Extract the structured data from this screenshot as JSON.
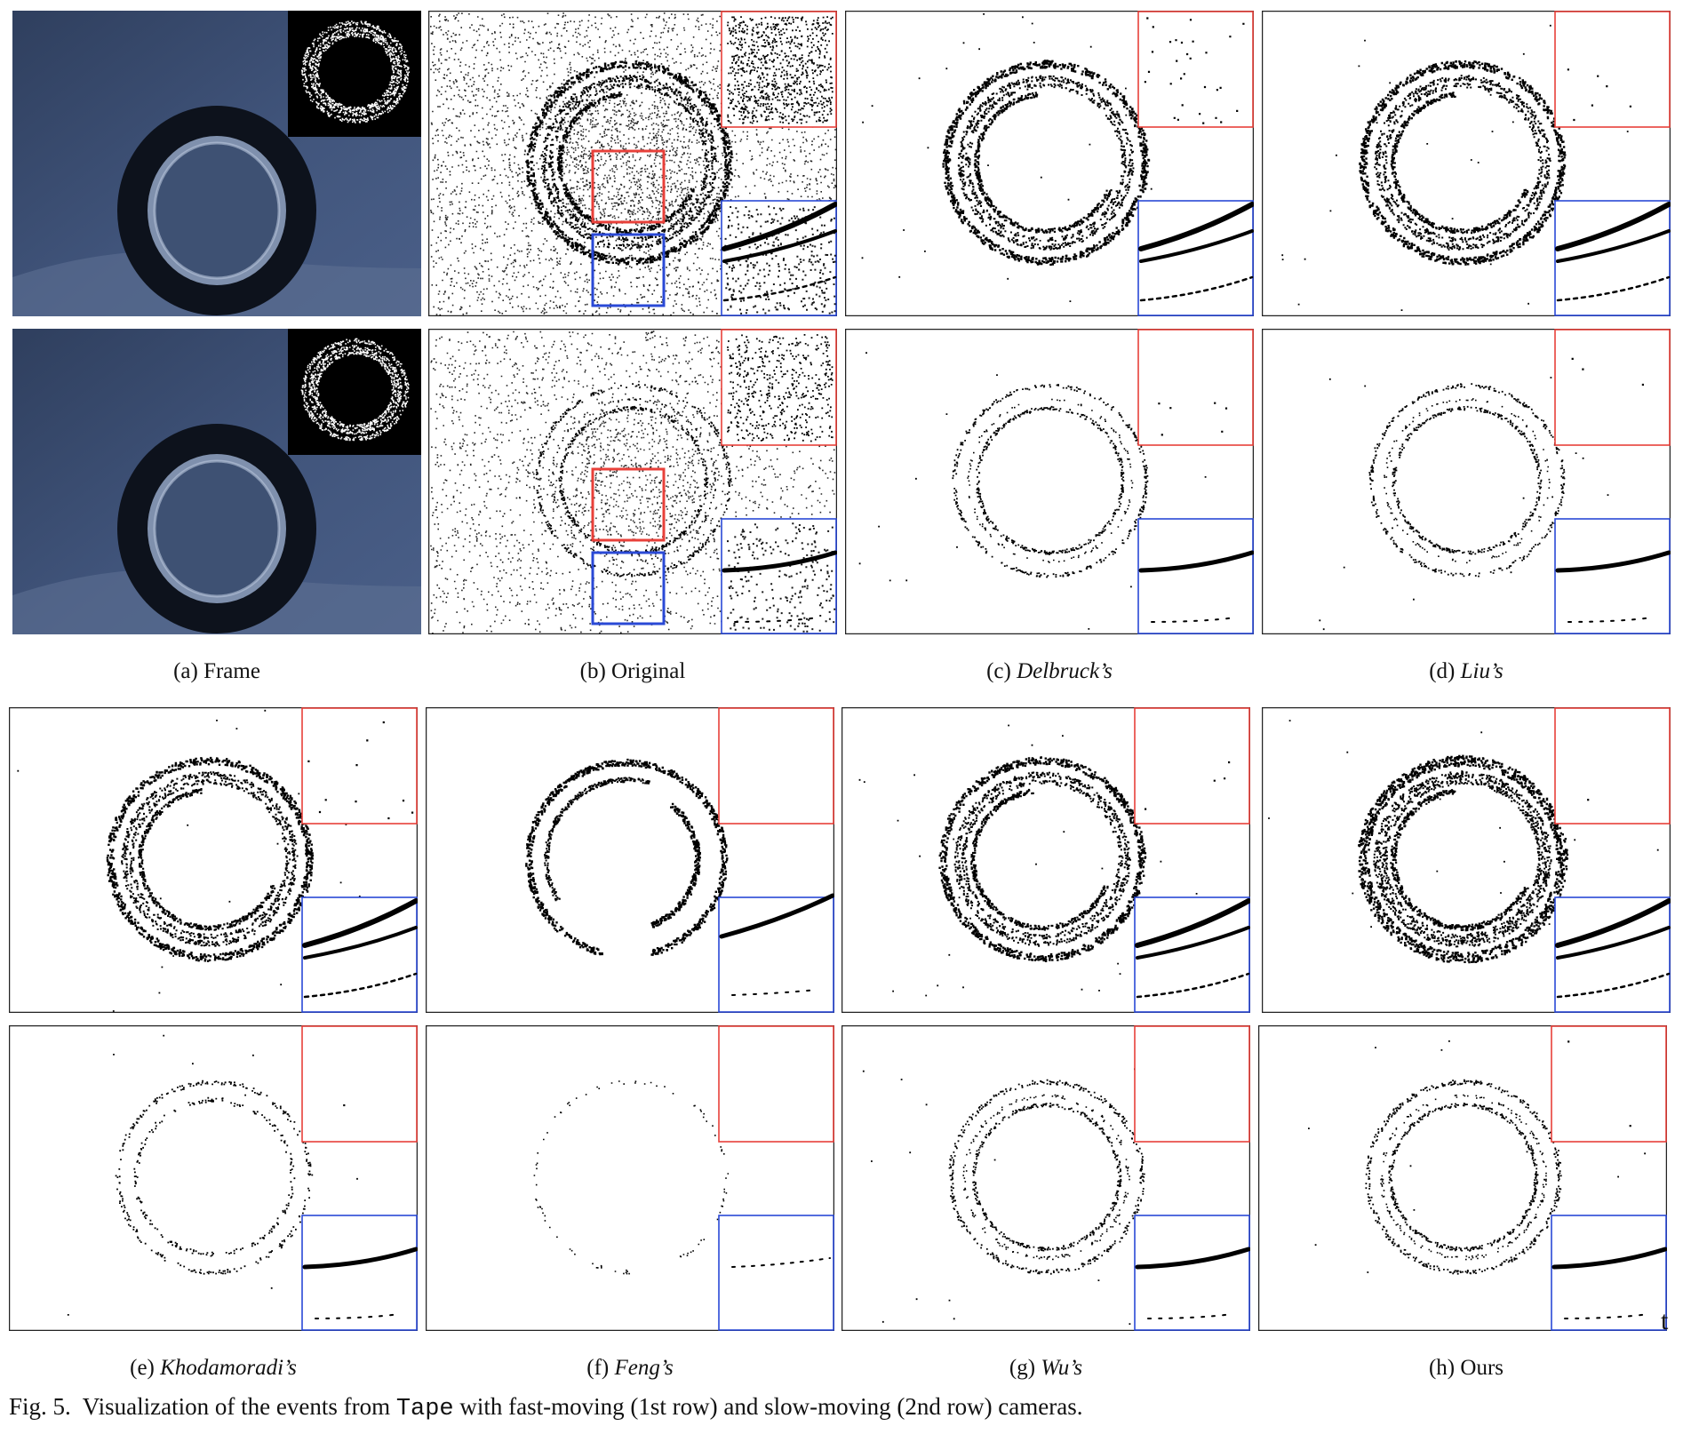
{
  "labels": {
    "a": {
      "letter": "(a)",
      "name": "Frame"
    },
    "b": {
      "letter": "(b)",
      "name": "Original"
    },
    "c": {
      "letter": "(c)",
      "name": "Delbruck’s"
    },
    "d": {
      "letter": "(d)",
      "name": "Liu’s"
    },
    "e": {
      "letter": "(e)",
      "name": "Khodamoradi’s"
    },
    "f": {
      "letter": "(f)",
      "name": "Feng’s"
    },
    "g": {
      "letter": "(g)",
      "name": "Wu’s"
    },
    "h": {
      "letter": "(h)",
      "name": "Ours"
    }
  },
  "caption": {
    "prefix": "Fig. 5.",
    "before": "Visualization of the events from",
    "dataset": "Tape",
    "after": "with fast-moving (1st row) and slow-moving (2nd row) cameras."
  },
  "stray_glyph": "t",
  "colors": {
    "frame_bg": "#3a4a6b",
    "tape_dark": "#0d121c",
    "inset_red": "#e8403a",
    "inset_blue": "#2a49d6",
    "event_black": "#000000"
  }
}
